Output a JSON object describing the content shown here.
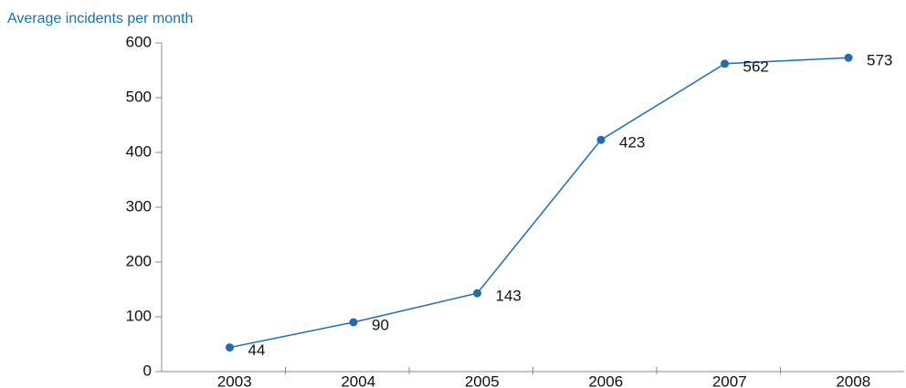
{
  "chart_data": {
    "type": "line",
    "title": "Average incidents per month",
    "categories": [
      "2003",
      "2004",
      "2005",
      "2006",
      "2007",
      "2008"
    ],
    "series": [
      {
        "name": "Average incidents per month",
        "color": "#1f6db0",
        "values": [
          44,
          90,
          143,
          423,
          562,
          573
        ]
      }
    ],
    "ylim": [
      0,
      600
    ],
    "yticks": [
      0,
      100,
      200,
      300,
      400,
      500,
      600
    ],
    "grid": false,
    "data_labels": true
  }
}
